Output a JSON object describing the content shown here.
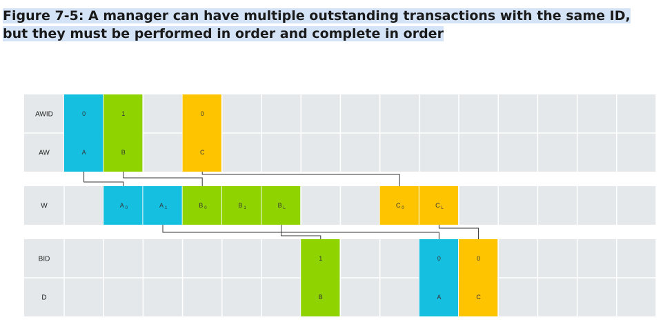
{
  "figure": {
    "title": "Figure 7-5: A manager can have multiple outstanding transactions with the same ID, but they must be performed in order and complete in order"
  },
  "colors": {
    "cyan": "#14bfe0",
    "green": "#8fd400",
    "yellow": "#ffc400",
    "grid_bg": "#e4e8ea",
    "line": "#333333"
  },
  "rows": [
    {
      "key": "awid",
      "label": "AWID"
    },
    {
      "key": "aw",
      "label": "AW"
    },
    {
      "key": "w",
      "label": "W"
    },
    {
      "key": "bid",
      "label": "BID"
    },
    {
      "key": "d",
      "label": "D"
    }
  ],
  "cells": [
    {
      "row": "awid",
      "col": 0,
      "color": "cyan",
      "text": "0"
    },
    {
      "row": "awid",
      "col": 1,
      "color": "green",
      "text": "1"
    },
    {
      "row": "awid",
      "col": 3,
      "color": "yellow",
      "text": "0"
    },
    {
      "row": "aw",
      "col": 0,
      "color": "cyan",
      "text": "A"
    },
    {
      "row": "aw",
      "col": 1,
      "color": "green",
      "text": "B"
    },
    {
      "row": "aw",
      "col": 3,
      "color": "yellow",
      "text": "C"
    },
    {
      "row": "w",
      "col": 1,
      "color": "cyan",
      "text": "A",
      "sub": "0"
    },
    {
      "row": "w",
      "col": 2,
      "color": "cyan",
      "text": "A",
      "sub": "1"
    },
    {
      "row": "w",
      "col": 3,
      "color": "green",
      "text": "B",
      "sub": "0"
    },
    {
      "row": "w",
      "col": 4,
      "color": "green",
      "text": "B",
      "sub": "1"
    },
    {
      "row": "w",
      "col": 5,
      "color": "green",
      "text": "B",
      "sub": "L"
    },
    {
      "row": "w",
      "col": 8,
      "color": "yellow",
      "text": "C",
      "sub": "0"
    },
    {
      "row": "w",
      "col": 9,
      "color": "yellow",
      "text": "C",
      "sub": "L"
    },
    {
      "row": "bid",
      "col": 6,
      "color": "green",
      "text": "1"
    },
    {
      "row": "bid",
      "col": 9,
      "color": "cyan",
      "text": "0"
    },
    {
      "row": "bid",
      "col": 10,
      "color": "yellow",
      "text": "0"
    },
    {
      "row": "d",
      "col": 6,
      "color": "green",
      "text": "B"
    },
    {
      "row": "d",
      "col": 9,
      "color": "cyan",
      "text": "A"
    },
    {
      "row": "d",
      "col": 10,
      "color": "yellow",
      "text": "C"
    }
  ],
  "connectors": [
    {
      "name": "connector-aw-a-to-w-a0"
    },
    {
      "name": "connector-aw-b-to-w-b0"
    },
    {
      "name": "connector-aw-c-to-w-c0"
    },
    {
      "name": "connector-w-bl-to-bid-1"
    },
    {
      "name": "connector-w-a1-to-bid-0-a"
    },
    {
      "name": "connector-w-cl-to-bid-0-c"
    }
  ]
}
